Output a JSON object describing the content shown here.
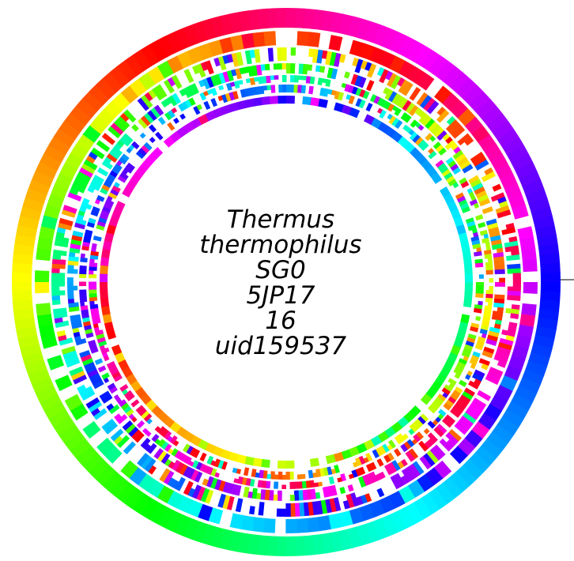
{
  "diagram": {
    "type": "circular-genome-map",
    "label_lines": [
      "Thermus",
      "thermophilus",
      "SG0",
      "5JP17",
      "16",
      "uid159537"
    ],
    "rings": 7,
    "color_scheme": "rainbow-hue-by-position",
    "origin_marker": "tick-at-right"
  }
}
